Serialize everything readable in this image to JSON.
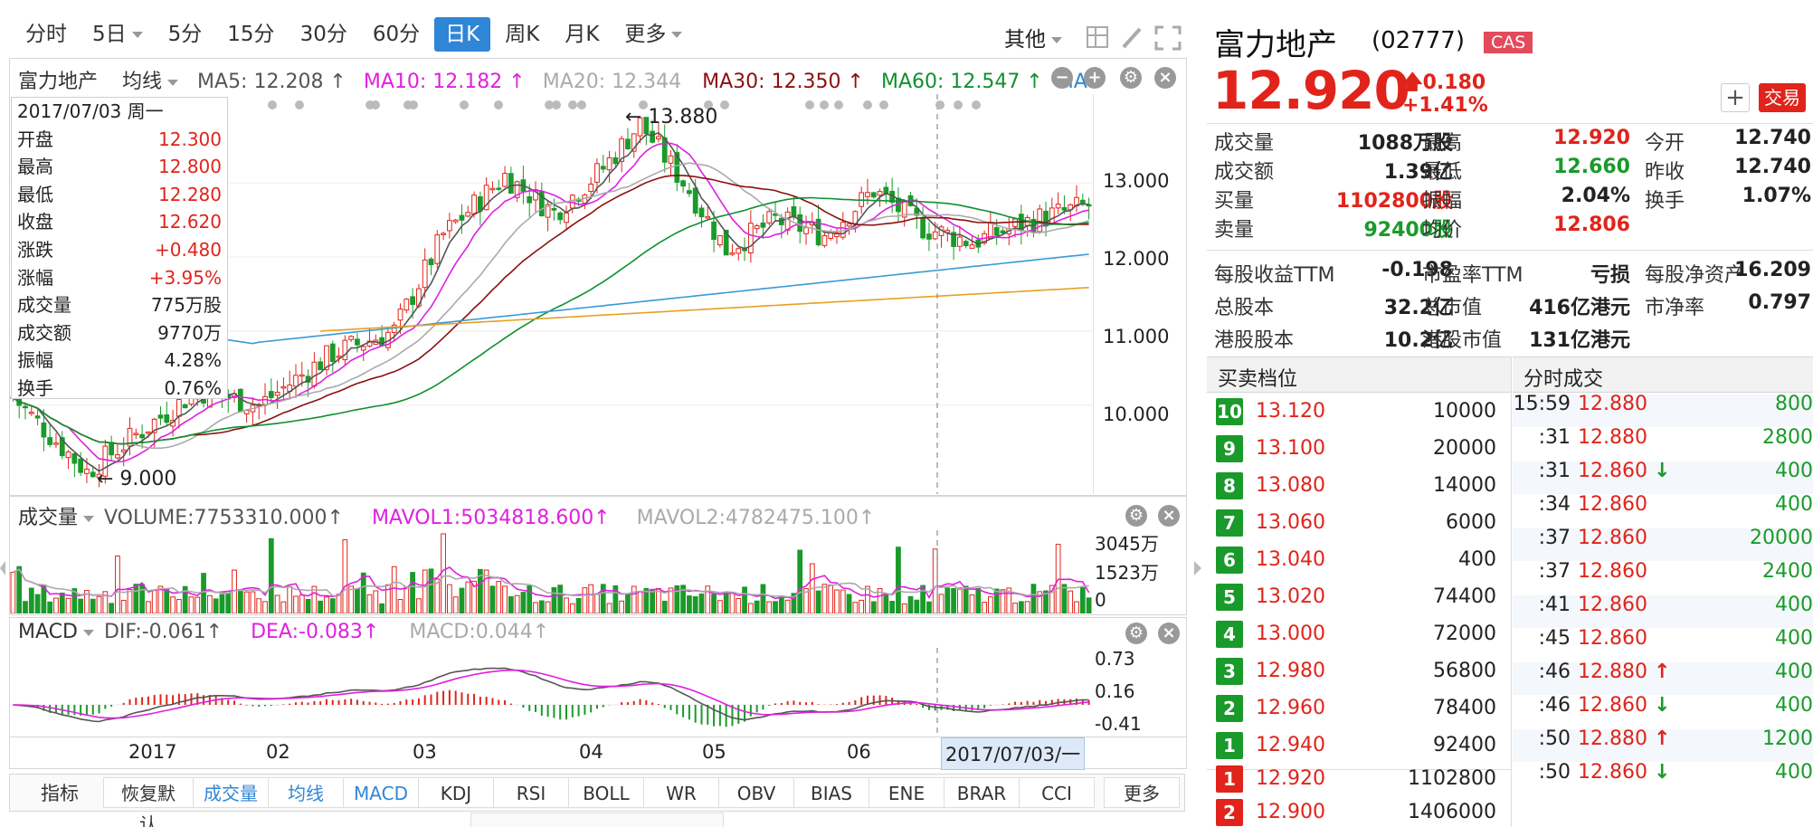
{
  "tabs": [
    "分时",
    "5日",
    "5分",
    "15分",
    "30分",
    "60分",
    "日K",
    "周K",
    "月K",
    "更多"
  ],
  "active_tab": "日K",
  "top_right": {
    "other": "其他"
  },
  "main_chart": {
    "stock_name": "富力地产",
    "ma_mode": "均线",
    "ma5": "MA5: 12.208 ↑",
    "ma10": "MA10: 12.182 ↑",
    "ma20": "MA20: 12.344",
    "ma30": "MA30: 12.350 ↑",
    "ma60": "MA60: 12.547 ↑",
    "ma": "MA",
    "high_label": "13.880",
    "low_label": "9.000",
    "y_ticks": [
      "13.000",
      "12.000",
      "11.000",
      "10.000"
    ]
  },
  "ohlc": {
    "date": "2017/07/03 周一",
    "rows": [
      {
        "k": "开盘",
        "v": "12.300",
        "c": "red"
      },
      {
        "k": "最高",
        "v": "12.800",
        "c": "red"
      },
      {
        "k": "最低",
        "v": "12.280",
        "c": "red"
      },
      {
        "k": "收盘",
        "v": "12.620",
        "c": "red"
      },
      {
        "k": "涨跌",
        "v": "+0.480",
        "c": "red"
      },
      {
        "k": "涨幅",
        "v": "+3.95%",
        "c": "red"
      },
      {
        "k": "成交量",
        "v": "775万股",
        "c": "black"
      },
      {
        "k": "成交额",
        "v": "9770万",
        "c": "black"
      },
      {
        "k": "振幅",
        "v": "4.28%",
        "c": "black"
      },
      {
        "k": "换手",
        "v": "0.76%",
        "c": "black"
      }
    ]
  },
  "volume": {
    "label": "成交量",
    "vol": "VOLUME:7753310.000↑",
    "mavol1": "MAVOL1:5034818.600↑",
    "mavol2": "MAVOL2:4782475.100↑",
    "ticks": [
      "3045万",
      "1523万",
      "0"
    ]
  },
  "macd": {
    "label": "MACD",
    "dif": "DIF:-0.061↑",
    "dea": "DEA:-0.083↑",
    "macd": "MACD:0.044↑",
    "ticks": [
      "0.73",
      "0.16",
      "-0.41"
    ]
  },
  "x_axis": {
    "labels": [
      "2017",
      "02",
      "03",
      "04",
      "05",
      "06"
    ],
    "cursor": "2017/07/03/一"
  },
  "indicators": {
    "title": "指标",
    "items": [
      "恢复默认",
      "成交量",
      "均线",
      "MACD",
      "KDJ",
      "RSI",
      "BOLL",
      "WR",
      "OBV",
      "BIAS",
      "ENE",
      "BRAR",
      "CCI",
      "更多"
    ]
  },
  "quote": {
    "name": "富力地产",
    "code": "(02777)",
    "badge": "CAS",
    "price": "12.920",
    "change": "0.180",
    "pct": "+1.41%",
    "trade": "交易",
    "plus": "+",
    "stats": [
      [
        [
          "成交量",
          "1088万股",
          "black"
        ],
        [
          "最高",
          "12.920",
          "red"
        ],
        [
          "今开",
          "12.740",
          "black"
        ]
      ],
      [
        [
          "成交额",
          "1.39亿",
          "black"
        ],
        [
          "最低",
          "12.660",
          "green"
        ],
        [
          "昨收",
          "12.740",
          "black"
        ]
      ],
      [
        [
          "买量",
          "1102800股",
          "red"
        ],
        [
          "振幅",
          "2.04%",
          "black"
        ],
        [
          "换手",
          "1.07%",
          "black"
        ]
      ],
      [
        [
          "卖量",
          "92400股",
          "green"
        ],
        [
          "均价",
          "12.806",
          "red"
        ],
        [
          "",
          "",
          " "
        ]
      ]
    ],
    "stats2": [
      [
        [
          "每股收益TTM",
          "-0.198"
        ],
        [
          "市盈率TTM",
          "亏损"
        ],
        [
          "每股净资产",
          "16.209"
        ]
      ],
      [
        [
          "总股本",
          "32.2亿"
        ],
        [
          "总市值",
          "416亿港元"
        ],
        [
          "市净率",
          "0.797"
        ]
      ],
      [
        [
          "港股股本",
          "10.2亿"
        ],
        [
          "港股市值",
          "131亿港元"
        ],
        [
          "",
          ""
        ]
      ]
    ]
  },
  "orderbook": {
    "title": "买卖档位",
    "asks": [
      [
        "10",
        "13.120",
        "10000"
      ],
      [
        "9",
        "13.100",
        "20000"
      ],
      [
        "8",
        "13.080",
        "14000"
      ],
      [
        "7",
        "13.060",
        "6000"
      ],
      [
        "6",
        "13.040",
        "400"
      ],
      [
        "5",
        "13.020",
        "74400"
      ],
      [
        "4",
        "13.000",
        "72000"
      ],
      [
        "3",
        "12.980",
        "56800"
      ],
      [
        "2",
        "12.960",
        "78400"
      ],
      [
        "1",
        "12.940",
        "92400"
      ]
    ],
    "bids": [
      [
        "1",
        "12.920",
        "1102800"
      ],
      [
        "2",
        "12.900",
        "1406000"
      ]
    ]
  },
  "ticks": {
    "title": "分时成交",
    "rows": [
      [
        "15:59",
        "12.880",
        "",
        "800"
      ],
      [
        ":31",
        "12.880",
        "",
        "2800"
      ],
      [
        ":31",
        "12.860",
        "↓",
        "400"
      ],
      [
        ":34",
        "12.860",
        "",
        "400"
      ],
      [
        ":37",
        "12.860",
        "",
        "20000"
      ],
      [
        ":37",
        "12.860",
        "",
        "2400"
      ],
      [
        ":41",
        "12.860",
        "",
        "400"
      ],
      [
        ":45",
        "12.860",
        "",
        "400"
      ],
      [
        ":46",
        "12.880",
        "↑",
        "400"
      ],
      [
        ":46",
        "12.860",
        "↓",
        "400"
      ],
      [
        ":50",
        "12.880",
        "↑",
        "1200"
      ],
      [
        ":50",
        "12.860",
        "↓",
        "400"
      ]
    ]
  },
  "colors": {
    "up": "#e0241b",
    "down": "#1a9a2a",
    "blue": "#2f86d6",
    "ma5": "#555555",
    "ma10": "#e020e0",
    "ma20": "#aaaaaa",
    "ma30": "#8b1010",
    "ma60": "#109030",
    "ma120": "#3a9ad6",
    "ma250": "#e8a020"
  }
}
